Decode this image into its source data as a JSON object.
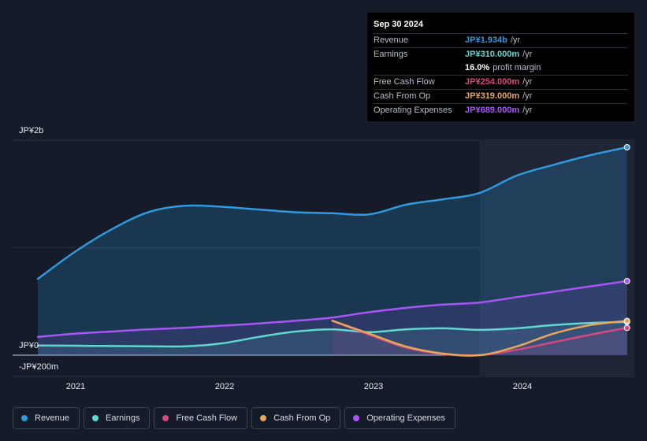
{
  "tooltip": {
    "date": "Sep 30 2024",
    "rows": [
      {
        "label": "Revenue",
        "value": "JP¥1.934b",
        "unit": "/yr",
        "color": "#2f9ae0"
      },
      {
        "label": "Earnings",
        "value": "JP¥310.000m",
        "unit": "/yr",
        "color": "#5fd8cf"
      },
      {
        "label": "",
        "value": "16.0%",
        "unit": "profit margin",
        "color": "#ffffff"
      },
      {
        "label": "Free Cash Flow",
        "value": "JP¥254.000m",
        "unit": "/yr",
        "color": "#d6497f"
      },
      {
        "label": "Cash From Op",
        "value": "JP¥319.000m",
        "unit": "/yr",
        "color": "#e8a85a"
      },
      {
        "label": "Operating Expenses",
        "value": "JP¥689.000m",
        "unit": "/yr",
        "color": "#a855f7"
      }
    ]
  },
  "chart_data": {
    "type": "area",
    "title": "",
    "y_axis_labels": [
      "JP¥2b",
      "JP¥0",
      "-JP¥200m"
    ],
    "ylim": [
      -200,
      2000
    ],
    "x_ticks": [
      2021,
      2022,
      2023,
      2024
    ],
    "xlim": [
      2020.75,
      2024.8
    ],
    "forecast_shade_start": 2023.75,
    "series": [
      {
        "name": "Revenue",
        "color": "#2f9ae0",
        "fill": true,
        "x": [
          2020.75,
          2021.0,
          2021.25,
          2021.5,
          2021.75,
          2022.0,
          2022.25,
          2022.5,
          2022.75,
          2023.0,
          2023.25,
          2023.5,
          2023.75,
          2024.0,
          2024.25,
          2024.5,
          2024.75
        ],
        "y": [
          710,
          960,
          1170,
          1330,
          1390,
          1380,
          1355,
          1330,
          1320,
          1310,
          1400,
          1450,
          1510,
          1670,
          1770,
          1860,
          1934
        ]
      },
      {
        "name": "Earnings",
        "color": "#5fd8cf",
        "fill": true,
        "x": [
          2020.75,
          2021.0,
          2021.25,
          2021.5,
          2021.75,
          2022.0,
          2022.25,
          2022.5,
          2022.75,
          2023.0,
          2023.25,
          2023.5,
          2023.75,
          2024.0,
          2024.25,
          2024.5,
          2024.75
        ],
        "y": [
          90,
          88,
          85,
          83,
          82,
          110,
          170,
          220,
          240,
          215,
          240,
          250,
          235,
          250,
          280,
          300,
          310
        ]
      },
      {
        "name": "Free Cash Flow",
        "color": "#d6497f",
        "fill": true,
        "x": [
          2022.75,
          2023.0,
          2023.25,
          2023.5,
          2023.75,
          2024.0,
          2024.25,
          2024.5,
          2024.75
        ],
        "y": [
          320,
          190,
          70,
          10,
          0,
          50,
          120,
          190,
          254
        ]
      },
      {
        "name": "Cash From Op",
        "color": "#e8a85a",
        "fill": false,
        "x": [
          2022.75,
          2023.0,
          2023.25,
          2023.5,
          2023.75,
          2024.0,
          2024.25,
          2024.5,
          2024.75
        ],
        "y": [
          320,
          200,
          80,
          15,
          0,
          80,
          200,
          280,
          319
        ]
      },
      {
        "name": "Operating Expenses",
        "color": "#a855f7",
        "fill": true,
        "x": [
          2020.75,
          2021.0,
          2021.25,
          2021.5,
          2021.75,
          2022.0,
          2022.25,
          2022.5,
          2022.75,
          2023.0,
          2023.25,
          2023.5,
          2023.75,
          2024.0,
          2024.25,
          2024.5,
          2024.75
        ],
        "y": [
          170,
          200,
          220,
          240,
          255,
          275,
          295,
          320,
          350,
          400,
          440,
          470,
          490,
          540,
          590,
          640,
          689
        ]
      }
    ]
  },
  "legend": [
    {
      "label": "Revenue",
      "color": "#2f9ae0"
    },
    {
      "label": "Earnings",
      "color": "#5fd8cf"
    },
    {
      "label": "Free Cash Flow",
      "color": "#d6497f"
    },
    {
      "label": "Cash From Op",
      "color": "#e8a85a"
    },
    {
      "label": "Operating Expenses",
      "color": "#a855f7"
    }
  ]
}
